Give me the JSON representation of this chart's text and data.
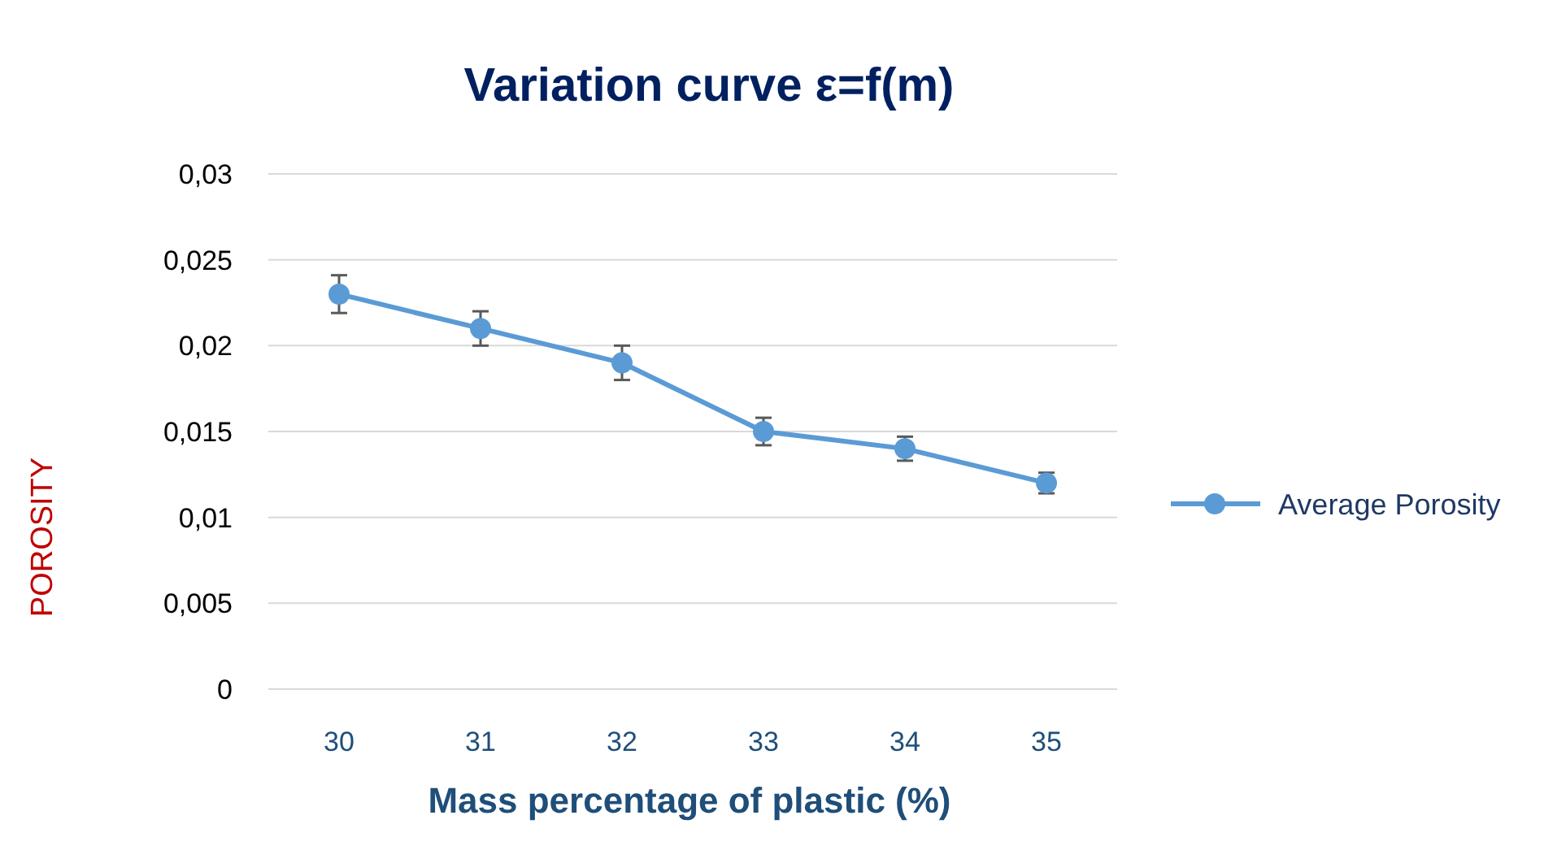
{
  "chart_data": {
    "type": "line",
    "title": "Variation curve ε=f(m)",
    "xlabel": "Mass percentage of plastic (%)",
    "ylabel": "POROSITY",
    "categories": [
      "30",
      "31",
      "32",
      "33",
      "34",
      "35"
    ],
    "series": [
      {
        "name": "Average Porosity",
        "color": "#5b9bd5",
        "values": [
          0.023,
          0.021,
          0.019,
          0.015,
          0.014,
          0.012
        ],
        "errors": [
          0.0011,
          0.001,
          0.001,
          0.0008,
          0.0007,
          0.0006
        ]
      }
    ],
    "ylim": [
      0,
      0.03
    ],
    "yticks": [
      {
        "value": 0,
        "label": "0"
      },
      {
        "value": 0.005,
        "label": "0,005"
      },
      {
        "value": 0.01,
        "label": "0,01"
      },
      {
        "value": 0.015,
        "label": "0,015"
      },
      {
        "value": 0.02,
        "label": "0,02"
      },
      {
        "value": 0.025,
        "label": "0,025"
      },
      {
        "value": 0.03,
        "label": "0,03"
      }
    ],
    "grid": "y",
    "legend": "right",
    "marker": "circle"
  }
}
